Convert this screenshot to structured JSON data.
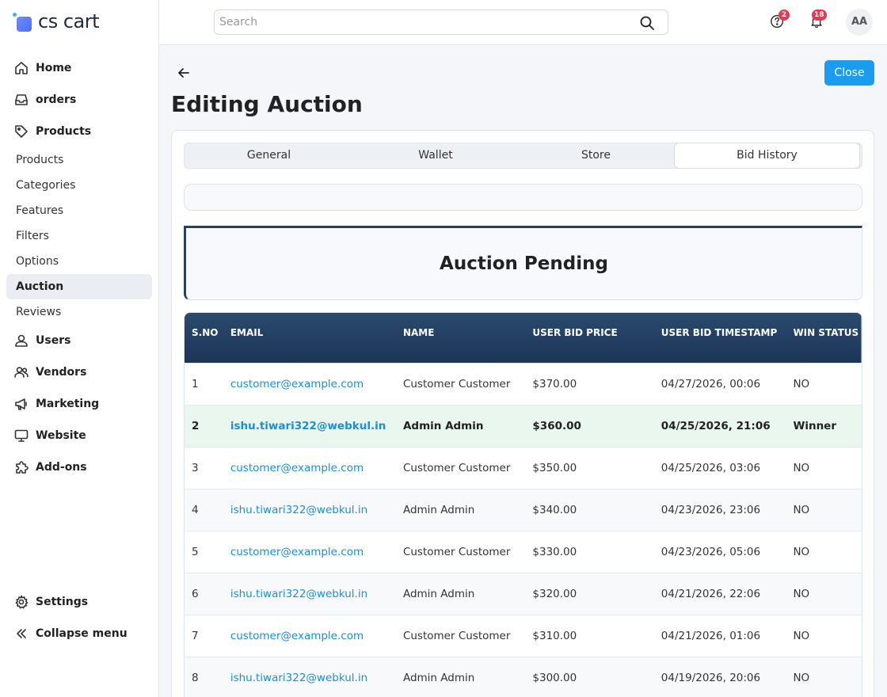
{
  "brand": {
    "name": "cs cart"
  },
  "search": {
    "placeholder": "Search"
  },
  "header": {
    "help_badge": "2",
    "notif_badge": "18",
    "avatar": "AA"
  },
  "nav": {
    "home": "Home",
    "orders": "orders",
    "products": "Products",
    "sub": [
      "Products",
      "Categories",
      "Features",
      "Filters",
      "Options",
      "Auction",
      "Reviews"
    ],
    "users": "Users",
    "vendors": "Vendors",
    "marketing": "Marketing",
    "website": "Website",
    "addons": "Add-ons",
    "settings": "Settings",
    "collapse": "Collapse menu"
  },
  "page": {
    "title": "Editing Auction",
    "close_label": "Close"
  },
  "tabs": [
    "General",
    "Wallet",
    "Store",
    "Bid History"
  ],
  "status_heading": "Auction Pending",
  "table": {
    "headers": [
      "S.NO",
      "EMAIL",
      "NAME",
      "USER BID PRICE",
      "USER BID TIMESTAMP",
      "WIN STATUS"
    ],
    "rows": [
      [
        "1",
        "customer@example.com",
        "Customer Customer",
        "$370.00",
        "04/27/2026, 00:06",
        "NO"
      ],
      [
        "2",
        "ishu.tiwari322@webkul.in",
        "Admin Admin",
        "$360.00",
        "04/25/2026, 21:06",
        "Winner"
      ],
      [
        "3",
        "customer@example.com",
        "Customer Customer",
        "$350.00",
        "04/25/2026, 03:06",
        "NO"
      ],
      [
        "4",
        "ishu.tiwari322@webkul.in",
        "Admin Admin",
        "$340.00",
        "04/23/2026, 23:06",
        "NO"
      ],
      [
        "5",
        "customer@example.com",
        "Customer Customer",
        "$330.00",
        "04/23/2026, 05:06",
        "NO"
      ],
      [
        "6",
        "ishu.tiwari322@webkul.in",
        "Admin Admin",
        "$320.00",
        "04/21/2026, 22:06",
        "NO"
      ],
      [
        "7",
        "customer@example.com",
        "Customer Customer",
        "$310.00",
        "04/21/2026, 01:06",
        "NO"
      ],
      [
        "8",
        "ishu.tiwari322@webkul.in",
        "Admin Admin",
        "$300.00",
        "04/19/2026, 20:06",
        "NO"
      ]
    ]
  },
  "colors": {
    "accent": "#1a9cf0",
    "header_bg": "#1c3557",
    "winner_row": "#e9f7ee",
    "badge": "#e53953"
  }
}
